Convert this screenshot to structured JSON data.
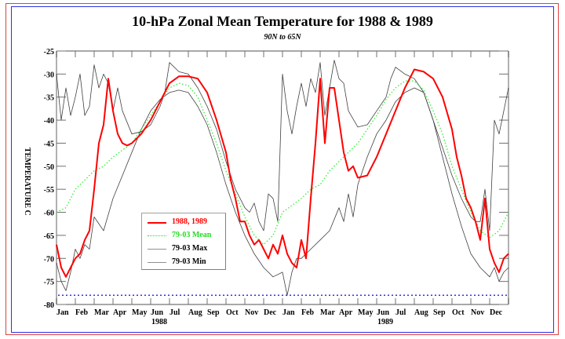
{
  "chart_data": {
    "type": "line",
    "title": "10-hPa Zonal Mean Temperature for 1988 & 1989",
    "subtitle": "90N to 65N",
    "xlabel": "",
    "ylabel": "TEMPERATURE C",
    "ylim": [
      -80,
      -25
    ],
    "yticks": [
      -25,
      -30,
      -35,
      -40,
      -45,
      -50,
      -55,
      -60,
      -65,
      -70,
      -75,
      -80
    ],
    "ytick_labels": [
      "-25",
      "-30",
      "-35",
      "-40",
      "-45",
      "-50",
      "-55",
      "-60",
      "-65",
      "-70",
      "-75",
      "-80"
    ],
    "xlim": [
      0,
      24
    ],
    "x_unit": "months since Jan 1988",
    "month_labels": [
      "Jan",
      "Feb",
      "Mar",
      "Apr",
      "May",
      "Jun",
      "Jul",
      "Aug",
      "Sep",
      "Oct",
      "Nov",
      "Dec",
      "Jan",
      "Feb",
      "Mar",
      "Apr",
      "May",
      "Jun",
      "Jul",
      "Aug",
      "Sep",
      "Oct",
      "Nov",
      "Dec"
    ],
    "year_labels": [
      {
        "label": "1988",
        "month_center": 6
      },
      {
        "label": "1989",
        "month_center": 18
      }
    ],
    "reference_line": {
      "y": -78,
      "color": "#3030e0",
      "style": "dotted"
    },
    "legend": {
      "position": "lower-left",
      "entries": [
        "1988, 1989",
        "79-03 Mean",
        "79-03 Max",
        "79-03 Min"
      ]
    },
    "series": [
      {
        "name": "1988, 1989",
        "color": "#ff0000",
        "style": "solid",
        "x": [
          0,
          0.25,
          0.5,
          0.75,
          1.0,
          1.25,
          1.5,
          1.75,
          2.0,
          2.25,
          2.5,
          2.75,
          3.0,
          3.25,
          3.5,
          3.75,
          4.0,
          4.5,
          5.0,
          5.5,
          6.0,
          6.5,
          7.0,
          7.5,
          8.0,
          8.5,
          9.0,
          9.25,
          9.5,
          9.75,
          10.0,
          10.25,
          10.5,
          10.75,
          11.0,
          11.25,
          11.5,
          11.75,
          12.0,
          12.25,
          12.5,
          12.75,
          13.0,
          13.25,
          13.5,
          13.75,
          14.0,
          14.25,
          14.5,
          14.75,
          15.0,
          15.25,
          15.5,
          15.75,
          16.0,
          16.5,
          17.0,
          17.5,
          18.0,
          18.5,
          19.0,
          19.5,
          20.0,
          20.5,
          21.0,
          21.25,
          21.5,
          21.75,
          22.0,
          22.25,
          22.5,
          22.75,
          23.0,
          23.25,
          23.5,
          23.75,
          24.0
        ],
        "values": [
          -67,
          -72,
          -74,
          -72,
          -70,
          -69,
          -66,
          -64,
          -55,
          -45,
          -41,
          -31,
          -38,
          -43,
          -45,
          -45.5,
          -45,
          -43,
          -40,
          -36,
          -32,
          -30.5,
          -30.5,
          -31,
          -34,
          -40,
          -47,
          -53,
          -57,
          -62,
          -62,
          -65,
          -67,
          -66,
          -68,
          -70,
          -67,
          -69,
          -65,
          -69,
          -71,
          -72,
          -66,
          -70,
          -57,
          -45,
          -31,
          -45,
          -33,
          -33,
          -40,
          -47,
          -51,
          -50,
          -52.5,
          -52,
          -48,
          -43,
          -38,
          -33,
          -29,
          -29.5,
          -31,
          -35,
          -42,
          -48,
          -52,
          -57,
          -59,
          -62,
          -66,
          -57,
          -68,
          -71,
          -73,
          -70,
          -69
        ]
      },
      {
        "name": "79-03 Mean",
        "color": "#33ee33",
        "style": "dotted",
        "x": [
          0,
          0.5,
          1.0,
          1.5,
          2.0,
          2.5,
          3.0,
          3.5,
          4.0,
          4.5,
          5.0,
          5.5,
          6.0,
          6.5,
          7.0,
          7.5,
          8.0,
          8.5,
          9.0,
          9.5,
          10.0,
          10.5,
          11.0,
          11.5,
          12.0,
          12.5,
          13.0,
          13.5,
          14.0,
          14.5,
          15.0,
          15.5,
          16.0,
          16.5,
          17.0,
          17.5,
          18.0,
          18.5,
          19.0,
          19.5,
          20.0,
          20.5,
          21.0,
          21.5,
          22.0,
          22.5,
          23.0,
          23.5,
          24.0
        ],
        "values": [
          -60,
          -59,
          -55,
          -53,
          -51,
          -50,
          -48,
          -46.5,
          -45,
          -42,
          -39,
          -36,
          -33,
          -32,
          -32.5,
          -35,
          -40,
          -45,
          -51,
          -56,
          -61,
          -65,
          -67,
          -65,
          -60,
          -58.5,
          -57,
          -55,
          -54,
          -51,
          -49,
          -47,
          -45,
          -42,
          -39,
          -35.5,
          -33,
          -31.5,
          -31.5,
          -33.5,
          -38,
          -43,
          -50,
          -55,
          -60,
          -64,
          -65.5,
          -64,
          -60
        ]
      },
      {
        "name": "79-03 Max",
        "color": "#404040",
        "style": "solid",
        "x": [
          0,
          0.25,
          0.5,
          0.75,
          1.0,
          1.25,
          1.5,
          1.75,
          2.0,
          2.25,
          2.5,
          2.75,
          3.0,
          3.25,
          3.5,
          4.0,
          4.5,
          5.0,
          5.5,
          5.75,
          6.0,
          6.5,
          7.0,
          7.5,
          8.0,
          8.5,
          9.0,
          9.5,
          10.0,
          10.25,
          10.5,
          10.75,
          11.0,
          11.25,
          11.5,
          11.75,
          12.0,
          12.25,
          12.5,
          12.75,
          13.0,
          13.25,
          13.5,
          13.75,
          14.0,
          14.25,
          14.5,
          14.75,
          15.0,
          15.25,
          15.5,
          16.0,
          16.5,
          17.0,
          17.5,
          17.75,
          18.0,
          18.5,
          19.0,
          19.5,
          20.0,
          20.5,
          21.0,
          21.5,
          22.0,
          22.25,
          22.5,
          22.75,
          23.0,
          23.25,
          23.5,
          23.75,
          24.0
        ],
        "values": [
          -30,
          -40,
          -33,
          -39,
          -35,
          -30,
          -39,
          -37,
          -28,
          -33,
          -30,
          -32,
          -38,
          -33,
          -38,
          -43,
          -42.5,
          -41,
          -37,
          -34,
          -27.5,
          -29.5,
          -30,
          -33,
          -37,
          -42,
          -49,
          -55,
          -59,
          -60,
          -58,
          -62,
          -64,
          -56,
          -57,
          -62,
          -30,
          -38,
          -43,
          -37,
          -32,
          -37,
          -31,
          -34,
          -27.5,
          -39,
          -33,
          -27,
          -31,
          -32,
          -38,
          -41.5,
          -41,
          -38,
          -35,
          -31,
          -28.5,
          -30,
          -31,
          -34,
          -40,
          -46,
          -52,
          -57,
          -61,
          -62,
          -62,
          -55,
          -64,
          -40,
          -43,
          -38,
          -33
        ]
      },
      {
        "name": "79-03 Min",
        "color": "#404040",
        "style": "solid",
        "x": [
          0,
          0.25,
          0.5,
          0.75,
          1.0,
          1.25,
          1.5,
          1.75,
          2.0,
          2.5,
          3.0,
          3.5,
          4.0,
          4.5,
          5.0,
          5.5,
          6.0,
          6.5,
          7.0,
          7.5,
          8.0,
          8.5,
          9.0,
          9.5,
          10.0,
          10.5,
          11.0,
          11.5,
          12.0,
          12.25,
          12.5,
          12.75,
          13.0,
          13.5,
          14.0,
          14.5,
          15.0,
          15.25,
          15.5,
          15.75,
          16.0,
          16.5,
          17.0,
          17.5,
          18.0,
          18.5,
          19.0,
          19.5,
          20.0,
          20.5,
          21.0,
          21.5,
          22.0,
          22.5,
          23.0,
          23.25,
          23.5,
          23.75,
          24.0
        ],
        "values": [
          -71,
          -75,
          -77,
          -73,
          -68,
          -70,
          -67,
          -68,
          -61,
          -64,
          -57,
          -52,
          -47,
          -42,
          -38,
          -35.5,
          -34,
          -33.5,
          -34,
          -37,
          -41,
          -47,
          -54,
          -60,
          -65,
          -69,
          -72,
          -74,
          -73,
          -78,
          -73,
          -70,
          -70,
          -68,
          -66,
          -64,
          -59,
          -62,
          -56,
          -61,
          -54,
          -48,
          -43,
          -40,
          -36,
          -34,
          -33,
          -34,
          -40,
          -48,
          -56,
          -63,
          -69,
          -72,
          -74,
          -72,
          -75,
          -73,
          -72
        ]
      }
    ]
  },
  "page": {
    "title": "10-hPa Zonal Mean Temperature for 1988 & 1989",
    "subtitle": "90N to 65N",
    "ylabel": "TEMPERATURE C"
  },
  "legend": {
    "items": [
      {
        "label": "1988, 1989",
        "color": "#ff0000",
        "style": "solid"
      },
      {
        "label": "79-03 Mean",
        "color": "#22dd22",
        "style": "dotted"
      },
      {
        "label": "79-03 Max",
        "color": "#808080",
        "style": "solid"
      },
      {
        "label": "79-03 Min",
        "color": "#808080",
        "style": "solid"
      }
    ]
  }
}
